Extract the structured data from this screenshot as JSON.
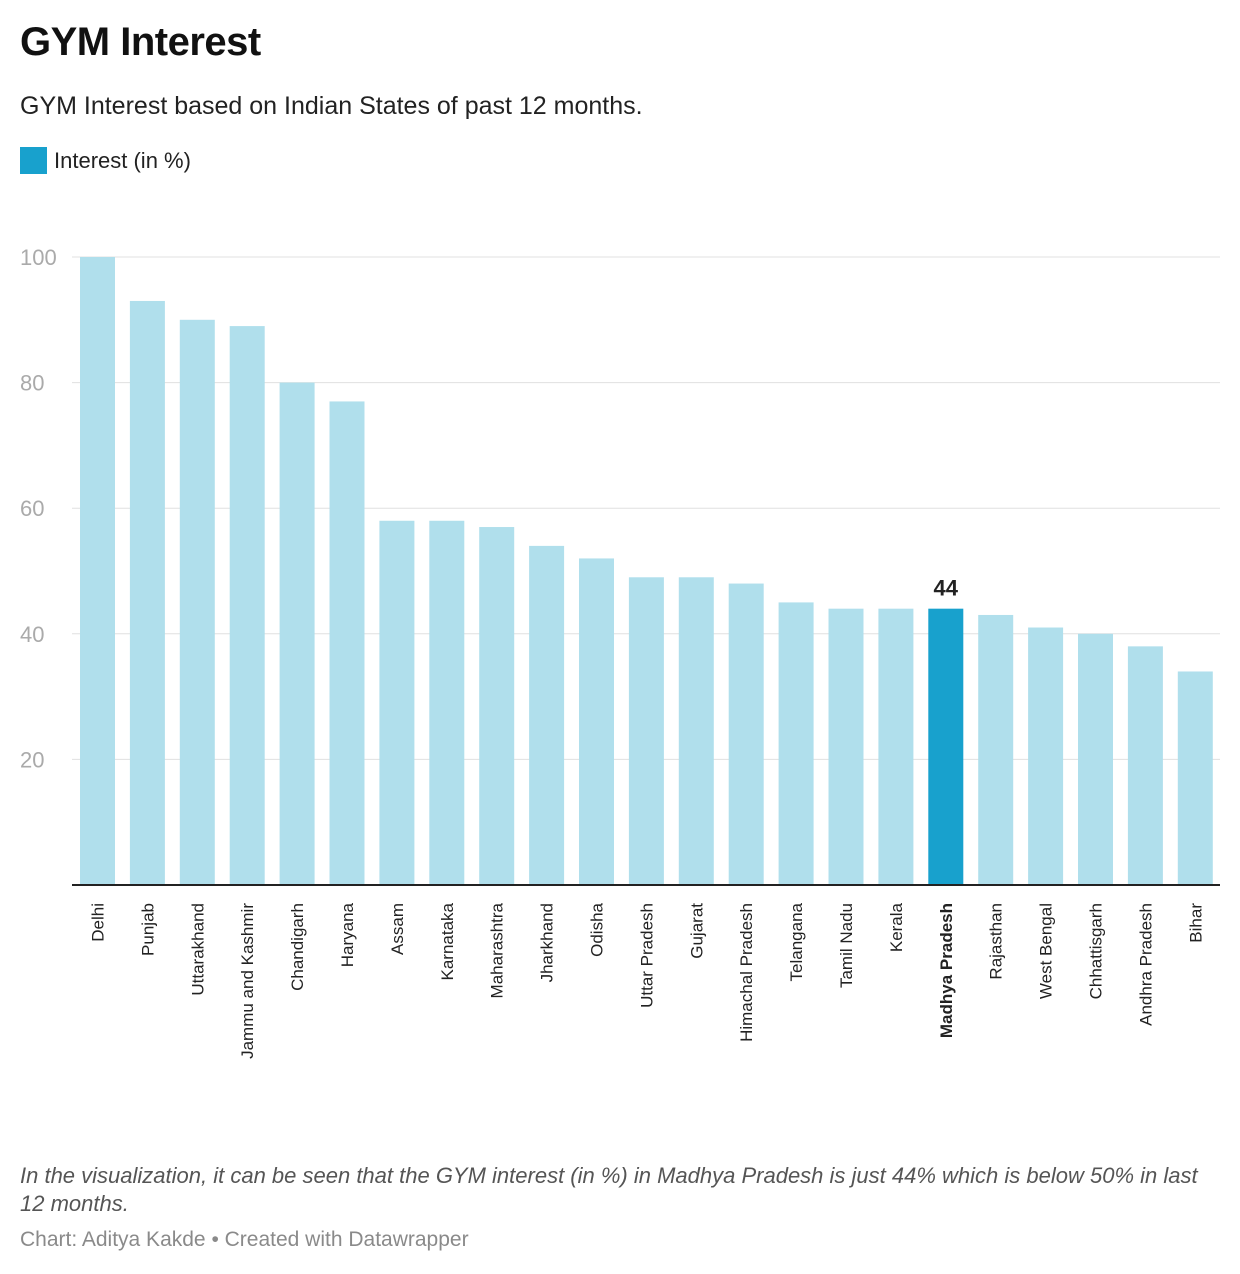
{
  "title": "GYM Interest",
  "subtitle": "GYM Interest based on Indian States of past 12 months.",
  "legend": {
    "label": "Interest (in %)",
    "color": "#18a1cd"
  },
  "colors": {
    "bar": "#b0dfec",
    "highlight": "#18a1cd",
    "grid": "#e0e0e0",
    "axis": "#222222",
    "tick_text": "#aaaaaa"
  },
  "chart_data": {
    "type": "bar",
    "categories": [
      "Delhi",
      "Punjab",
      "Uttarakhand",
      "Jammu and Kashmir",
      "Chandigarh",
      "Haryana",
      "Assam",
      "Karnataka",
      "Maharashtra",
      "Jharkhand",
      "Odisha",
      "Uttar Pradesh",
      "Gujarat",
      "Himachal Pradesh",
      "Telangana",
      "Tamil Nadu",
      "Kerala",
      "Madhya Pradesh",
      "Rajasthan",
      "West Bengal",
      "Chhattisgarh",
      "Andhra Pradesh",
      "Bihar"
    ],
    "series": [
      {
        "name": "Interest (in %)",
        "values": [
          100,
          93,
          90,
          89,
          80,
          77,
          58,
          58,
          57,
          54,
          52,
          49,
          49,
          48,
          45,
          44,
          44,
          44,
          43,
          41,
          40,
          38,
          34
        ]
      }
    ],
    "highlight": "Madhya Pradesh",
    "highlight_label": "44",
    "yticks": [
      20,
      40,
      60,
      80,
      100
    ],
    "ylim": [
      0,
      100
    ],
    "grid": true,
    "legend_position": "top-left"
  },
  "note": "In the visualization, it can be seen that the GYM interest (in %) in Madhya Pradesh is just 44% which is below 50% in last 12 months.",
  "credit": "Chart: Aditya Kakde • Created with Datawrapper"
}
